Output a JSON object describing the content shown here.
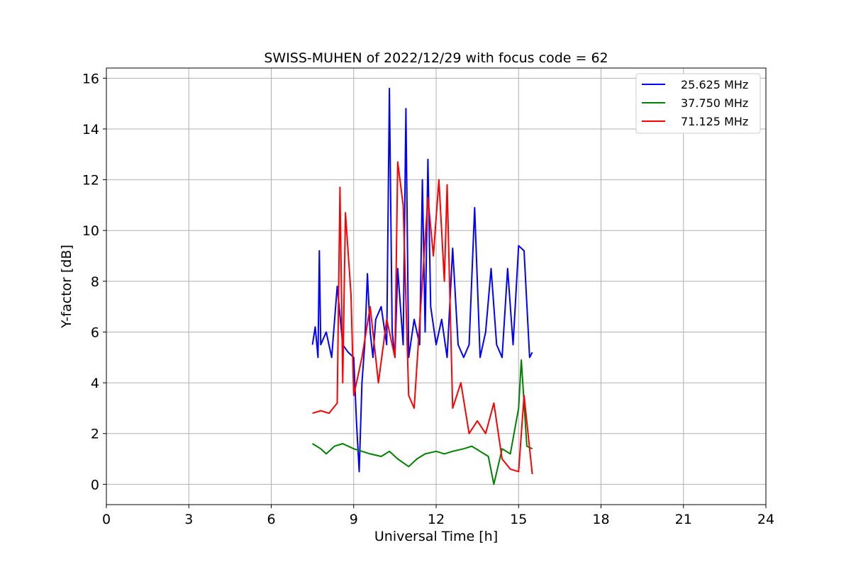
{
  "chart_data": {
    "type": "line",
    "title": "SWISS-MUHEN of 2022/12/29 with focus code = 62",
    "xlabel": "Universal Time [h]",
    "ylabel": "Y-factor [dB]",
    "xlim": [
      0,
      24
    ],
    "ylim": [
      -0.8,
      16.4
    ],
    "xticks": [
      0,
      3,
      6,
      9,
      12,
      15,
      18,
      21,
      24
    ],
    "yticks": [
      0,
      2,
      4,
      6,
      8,
      10,
      12,
      14,
      16
    ],
    "grid": true,
    "legend_position": "top-right",
    "series": [
      {
        "name": "25.625 MHz",
        "color": "#0000ff",
        "x": [
          7.5,
          7.6,
          7.7,
          7.75,
          7.8,
          8.0,
          8.2,
          8.4,
          8.6,
          8.8,
          9.0,
          9.1,
          9.2,
          9.3,
          9.4,
          9.5,
          9.6,
          9.7,
          9.8,
          10.0,
          10.2,
          10.3,
          10.4,
          10.5,
          10.6,
          10.8,
          10.9,
          11.0,
          11.2,
          11.4,
          11.5,
          11.6,
          11.7,
          11.8,
          12.0,
          12.2,
          12.4,
          12.6,
          12.8,
          13.0,
          13.2,
          13.4,
          13.6,
          13.8,
          14.0,
          14.2,
          14.4,
          14.6,
          14.8,
          15.0,
          15.2,
          15.4,
          15.5
        ],
        "y": [
          5.5,
          6.2,
          5.0,
          9.2,
          5.5,
          6.0,
          5.0,
          7.8,
          5.5,
          5.2,
          5.0,
          2.5,
          0.5,
          4.0,
          5.5,
          8.3,
          6.0,
          5.0,
          6.5,
          7.0,
          5.5,
          15.6,
          6.0,
          5.0,
          8.5,
          5.5,
          14.8,
          5.0,
          6.5,
          5.5,
          12.0,
          6.0,
          12.8,
          7.0,
          5.5,
          6.5,
          5.0,
          9.3,
          5.5,
          5.0,
          5.5,
          10.9,
          5.0,
          6.0,
          8.5,
          5.5,
          5.0,
          8.5,
          5.5,
          9.4,
          9.2,
          5.0,
          5.2
        ]
      },
      {
        "name": "37.750 MHz",
        "color": "#008000",
        "x": [
          7.5,
          7.8,
          8.0,
          8.3,
          8.6,
          9.0,
          9.3,
          9.6,
          10.0,
          10.3,
          10.6,
          11.0,
          11.3,
          11.6,
          12.0,
          12.3,
          12.6,
          13.0,
          13.3,
          13.6,
          13.9,
          14.1,
          14.4,
          14.7,
          15.0,
          15.1,
          15.3,
          15.5
        ],
        "y": [
          1.6,
          1.4,
          1.2,
          1.5,
          1.6,
          1.4,
          1.3,
          1.2,
          1.1,
          1.3,
          1.0,
          0.7,
          1.0,
          1.2,
          1.3,
          1.2,
          1.3,
          1.4,
          1.5,
          1.3,
          1.1,
          0.0,
          1.4,
          1.2,
          3.0,
          4.9,
          1.5,
          1.4
        ]
      },
      {
        "name": "71.125 MHz",
        "color": "#ff0000",
        "x": [
          7.5,
          7.8,
          8.1,
          8.4,
          8.5,
          8.6,
          8.7,
          8.9,
          9.0,
          9.3,
          9.6,
          9.9,
          10.2,
          10.5,
          10.6,
          10.8,
          11.0,
          11.2,
          11.5,
          11.7,
          11.9,
          12.1,
          12.3,
          12.4,
          12.6,
          12.9,
          13.2,
          13.5,
          13.8,
          14.1,
          14.4,
          14.7,
          15.0,
          15.2,
          15.5
        ],
        "y": [
          2.8,
          2.9,
          2.8,
          3.2,
          11.7,
          4.0,
          10.7,
          7.5,
          3.5,
          5.0,
          7.0,
          4.0,
          6.5,
          5.0,
          12.7,
          11.0,
          3.5,
          3.0,
          8.0,
          11.3,
          9.0,
          12.0,
          8.0,
          11.8,
          3.0,
          4.0,
          2.0,
          2.5,
          2.0,
          3.2,
          1.0,
          0.6,
          0.5,
          3.5,
          0.4
        ]
      }
    ]
  }
}
